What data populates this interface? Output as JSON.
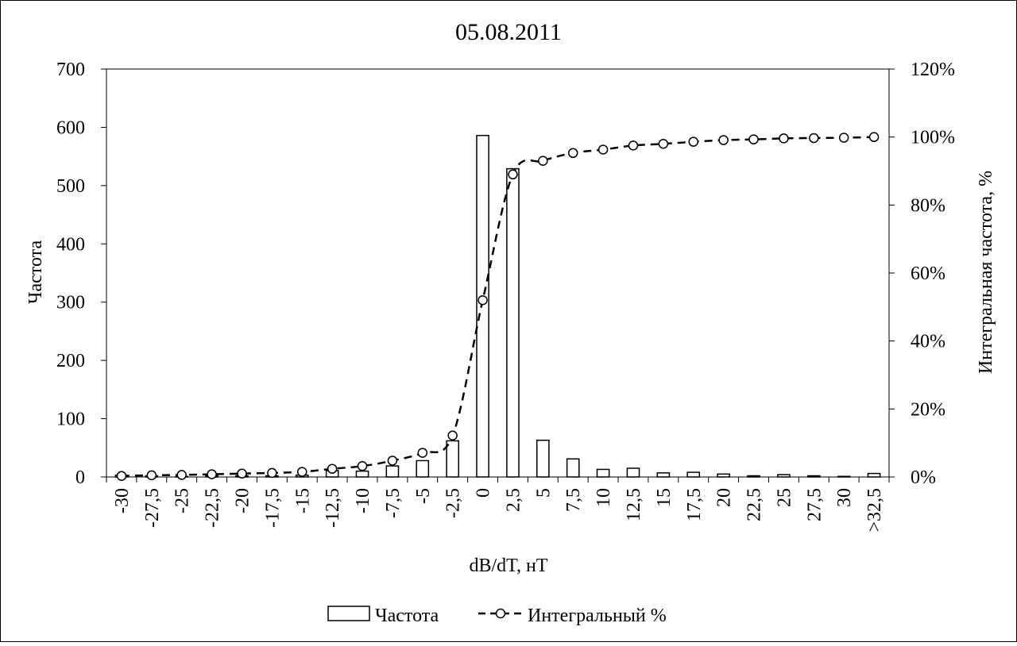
{
  "chart_data": {
    "type": "bar",
    "title": "05.08.2011",
    "xlabel": "dB/dT, нТ",
    "ylabel_left": "Частота",
    "ylabel_right": "Интегральная частота, %",
    "categories": [
      "-30",
      "-27,5",
      "-25",
      "-22,5",
      "-20",
      "-17,5",
      "-15",
      "-12,5",
      "-10",
      "-7,5",
      "-5",
      "-2,5",
      "0",
      "2,5",
      "5",
      "7,5",
      "10",
      "12,5",
      "15",
      "17,5",
      "20",
      "22,5",
      "25",
      "27,5",
      "30",
      ">32,5"
    ],
    "ylim_left": [
      0,
      700
    ],
    "yticks_left": [
      "0",
      "100",
      "200",
      "300",
      "400",
      "500",
      "600",
      "700"
    ],
    "ylim_right": [
      0,
      1.2
    ],
    "yticks_right": [
      "0%",
      "20%",
      "40%",
      "60%",
      "80%",
      "100%",
      "120%"
    ],
    "legend_position": "bottom",
    "grid": false,
    "series": [
      {
        "name": "Частота",
        "type": "bar",
        "values": [
          3,
          2,
          1,
          2,
          2,
          2,
          3,
          11,
          10,
          19,
          28,
          62,
          586,
          529,
          63,
          31,
          13,
          15,
          7,
          8,
          5,
          2,
          4,
          2,
          1,
          6
        ]
      },
      {
        "name": "Интегральный %",
        "type": "line",
        "values": [
          0.003,
          0.005,
          0.006,
          0.008,
          0.01,
          0.012,
          0.015,
          0.024,
          0.032,
          0.048,
          0.071,
          0.122,
          0.52,
          0.89,
          0.93,
          0.953,
          0.963,
          0.975,
          0.98,
          0.986,
          0.991,
          0.993,
          0.996,
          0.997,
          0.998,
          1.0
        ]
      }
    ]
  }
}
